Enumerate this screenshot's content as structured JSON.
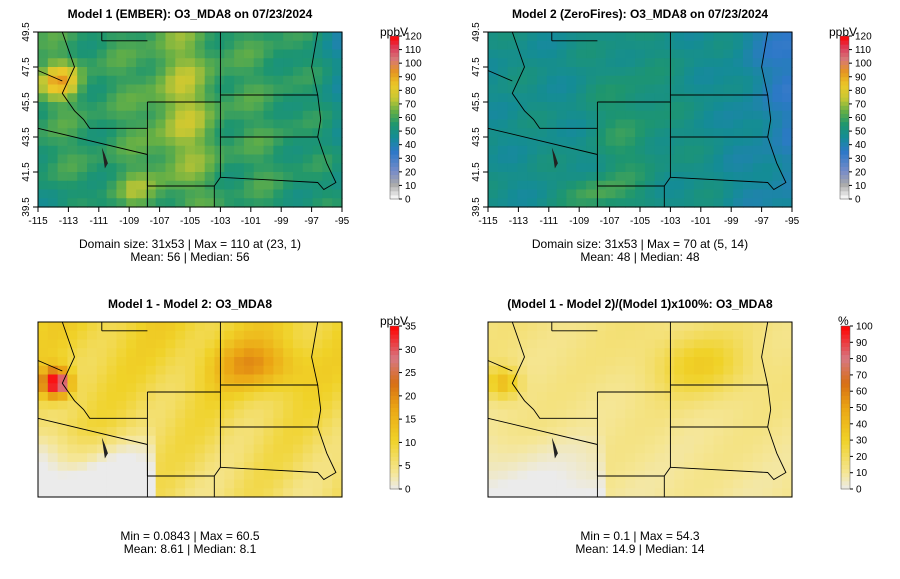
{
  "chart_data": [
    {
      "type": "heatmap",
      "title": "Model 1 (EMBER): O3_MDA8 on 07/23/2024",
      "unit": "ppbV",
      "colorbar_ticks": [
        0,
        10,
        20,
        30,
        40,
        50,
        60,
        70,
        80,
        90,
        100,
        110,
        120
      ],
      "colorbar_max": 120,
      "palette": "ozone",
      "x_ticks": [
        "-115",
        "-113",
        "-111",
        "-109",
        "-107",
        "-105",
        "-103",
        "-101",
        "-99",
        "-97",
        "-95"
      ],
      "y_ticks": [
        "39.5",
        "41.5",
        "43.5",
        "45.5",
        "47.5",
        "49.5"
      ],
      "stats_line1": "Domain size: 31x53 | Max = 110 at (23, 1)",
      "stats_line2": "Mean: 56 |  Median: 56"
    },
    {
      "type": "heatmap",
      "title": "Model 2 (ZeroFires): O3_MDA8 on 07/23/2024",
      "unit": "ppbV",
      "colorbar_ticks": [
        0,
        10,
        20,
        30,
        40,
        50,
        60,
        70,
        80,
        90,
        100,
        110,
        120
      ],
      "colorbar_max": 120,
      "palette": "ozone",
      "x_ticks": [
        "-115",
        "-113",
        "-111",
        "-109",
        "-107",
        "-105",
        "-103",
        "-101",
        "-99",
        "-97",
        "-95"
      ],
      "y_ticks": [
        "39.5",
        "41.5",
        "43.5",
        "45.5",
        "47.5",
        "49.5"
      ],
      "stats_line1": "Domain size: 31x53 | Max = 70 at (5, 14)",
      "stats_line2": "Mean: 48 |  Median: 48"
    },
    {
      "type": "heatmap",
      "title": "Model 1 - Model 2: O3_MDA8",
      "unit": "ppbV",
      "colorbar_ticks": [
        0,
        5,
        10,
        15,
        20,
        25,
        30,
        35
      ],
      "colorbar_max": 35,
      "palette": "diff",
      "x_ticks": [],
      "y_ticks": [],
      "stats_line1": "Min = 0.0843 | Max = 60.5",
      "stats_line2": "Mean: 8.61 |  Median: 8.1"
    },
    {
      "type": "heatmap",
      "title": "(Model 1 - Model 2)/(Model 1)x100%: O3_MDA8",
      "unit": "%",
      "colorbar_ticks": [
        0,
        10,
        20,
        30,
        40,
        50,
        60,
        70,
        80,
        90,
        100
      ],
      "colorbar_max": 100,
      "palette": "diff",
      "x_ticks": [],
      "y_ticks": [],
      "stats_line1": "Min = 0.1 | Max = 54.3",
      "stats_line2": "Mean: 14.9 |  Median: 14"
    }
  ]
}
